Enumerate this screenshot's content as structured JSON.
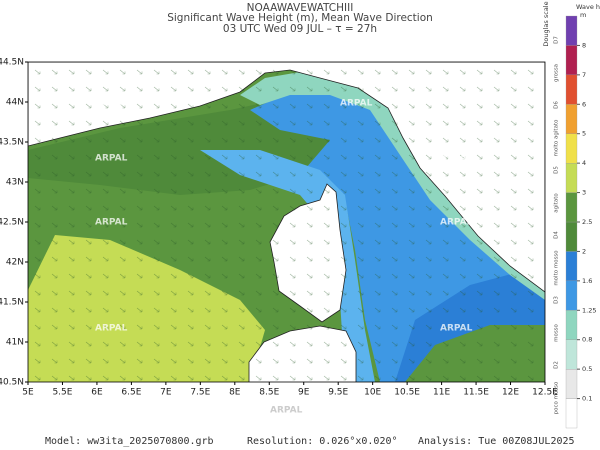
{
  "header": {
    "title": "NOAAWAVEWATCHIII",
    "subtitle": "Significant Wave Height (m), Mean Wave Direction",
    "time": "03 UTC Wed 09 JUL  –  τ = 27h"
  },
  "map": {
    "lonlim": [
      5,
      12.5
    ],
    "latlim": [
      40.5,
      44.5
    ],
    "lat_ticks": [
      {
        "value": 40.5,
        "label": "40.5N"
      },
      {
        "value": 41,
        "label": "41N"
      },
      {
        "value": 41.5,
        "label": "41.5N"
      },
      {
        "value": 42,
        "label": "42N"
      },
      {
        "value": 42.5,
        "label": "42.5N"
      },
      {
        "value": 43,
        "label": "43N"
      },
      {
        "value": 43.5,
        "label": "43.5N"
      },
      {
        "value": 44,
        "label": "44N"
      },
      {
        "value": 44.5,
        "label": "44.5N"
      }
    ],
    "lon_ticks": [
      {
        "value": 5,
        "label": "5E"
      },
      {
        "value": 5.5,
        "label": "5.5E"
      },
      {
        "value": 6,
        "label": "6E"
      },
      {
        "value": 6.5,
        "label": "6.5E"
      },
      {
        "value": 7,
        "label": "7E"
      },
      {
        "value": 7.5,
        "label": "7.5E"
      },
      {
        "value": 8,
        "label": "8E"
      },
      {
        "value": 8.5,
        "label": "8.5E"
      },
      {
        "value": 9,
        "label": "9E"
      },
      {
        "value": 9.5,
        "label": "9.5E"
      },
      {
        "value": 10,
        "label": "10E"
      },
      {
        "value": 10.5,
        "label": "10.5E"
      },
      {
        "value": 11,
        "label": "11E"
      },
      {
        "value": 11.5,
        "label": "11.5E"
      },
      {
        "value": 12,
        "label": "12E"
      },
      {
        "value": 12.5,
        "label": "12.5E"
      }
    ],
    "watermark": "ARPAL"
  },
  "legend": {
    "title": "Wave height",
    "unit": "m",
    "scale_title": "Douglas scale",
    "levels": [
      0.1,
      0.5,
      0.8,
      1.25,
      1.6,
      2,
      2.5,
      3,
      4,
      5,
      6,
      7,
      8
    ],
    "colors": [
      "#ffffff",
      "#e8e8e8",
      "#bfe6da",
      "#8fd6bf",
      "#3e98e4",
      "#2b7fd6",
      "#4f8a3a",
      "#5b963f",
      "#c5dc55",
      "#f0e04a",
      "#f0a030",
      "#e05030",
      "#b02050",
      "#7040b0"
    ],
    "douglas": [
      {
        "code": "D7",
        "name": "grossa"
      },
      {
        "code": "D6",
        "name": "molto agitato"
      },
      {
        "code": "D5",
        "name": "agitato"
      },
      {
        "code": "D4",
        "name": "molto mosso"
      },
      {
        "code": "D3",
        "name": "mosso"
      },
      {
        "code": "D2",
        "name": "poco mosso"
      }
    ]
  },
  "footer": {
    "model": "Model: ww3ita_2025070800.grb",
    "resolution": "Resolution: 0.026°x0.020°",
    "analysis": "Analysis: Tue 00Z08JUL2025"
  }
}
